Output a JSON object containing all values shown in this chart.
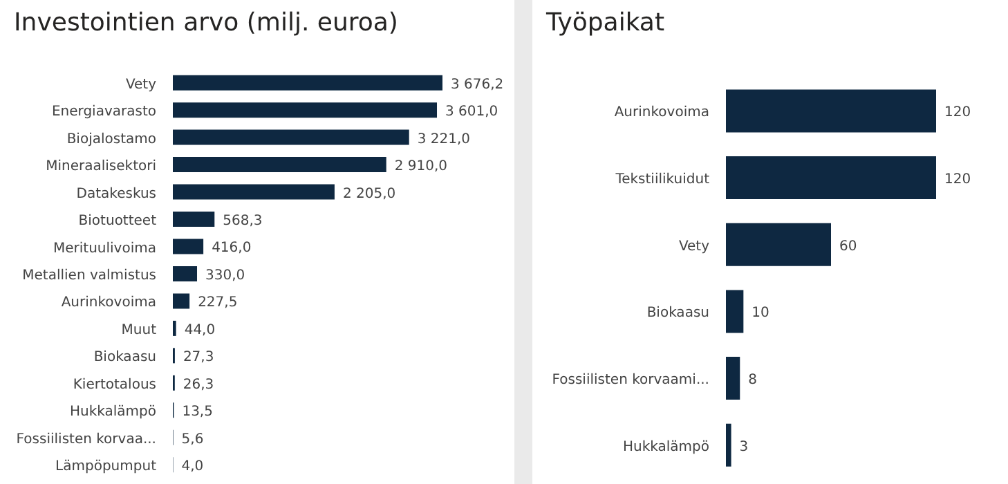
{
  "chart_data": [
    {
      "type": "bar",
      "orientation": "horizontal",
      "title": "Investointien arvo (milj. euroa)",
      "color": "#0e2841",
      "categories": [
        "Vety",
        "Energiavarasto",
        "Biojalostamo",
        "Mineraalisektori",
        "Datakeskus",
        "Biotuotteet",
        "Merituulivoima",
        "Metallien valmistus",
        "Aurinkovoima",
        "Muut",
        "Biokaasu",
        "Kiertotalous",
        "Hukkalämpö",
        "Fossiilisten korvaa...",
        "Lämpöpumput"
      ],
      "values": [
        3676.2,
        3601.0,
        3221.0,
        2910.0,
        2205.0,
        568.3,
        416.0,
        330.0,
        227.5,
        44.0,
        27.3,
        26.3,
        13.5,
        5.6,
        4.0
      ],
      "value_labels": [
        "3 676,2",
        "3 601,0",
        "3 221,0",
        "2 910,0",
        "2 205,0",
        "568,3",
        "416,0",
        "330,0",
        "227,5",
        "44,0",
        "27,3",
        "26,3",
        "13,5",
        "5,6",
        "4,0"
      ]
    },
    {
      "type": "bar",
      "orientation": "horizontal",
      "title": "Työpaikat",
      "color": "#0e2841",
      "categories": [
        "Aurinkovoima",
        "Tekstiilikuidut",
        "Vety",
        "Biokaasu",
        "Fossiilisten korvaami...",
        "Hukkalämpö"
      ],
      "values": [
        120,
        120,
        60,
        10,
        8,
        3
      ],
      "value_labels": [
        "120",
        "120",
        "60",
        "10",
        "8",
        "3"
      ]
    }
  ]
}
